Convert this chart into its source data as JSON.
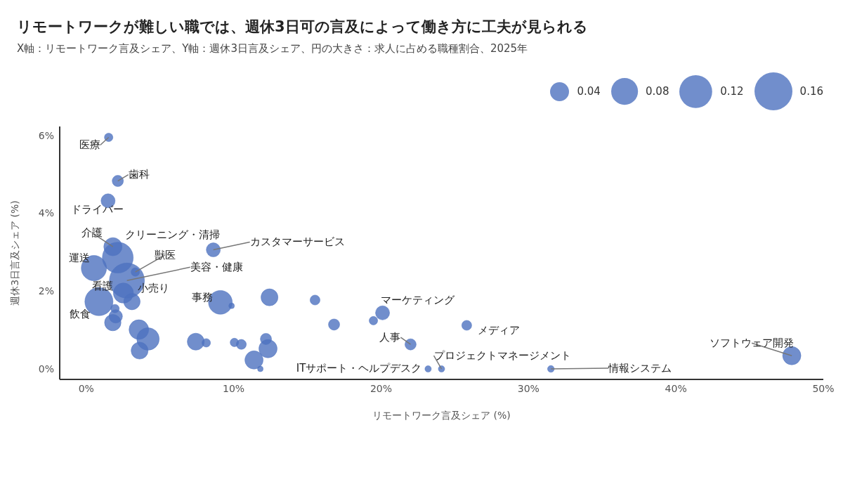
{
  "chart_data": {
    "type": "bubble",
    "title": "リモートワークが難しい職では、週休3日可の言及によって働き方に工夫が見られる",
    "subtitle": "X軸：リモートワーク言及シェア、Y軸：週休3日言及シェア、円の大きさ：求人に占める職種割合、2025年",
    "xlabel": "リモートワーク言及シェア (%)",
    "ylabel": "週休3日言及シェア (%)",
    "xlim": [
      -1.8,
      50
    ],
    "ylim": [
      -0.27,
      6.23
    ],
    "xticks": [
      {
        "value": 0,
        "label": "0%"
      },
      {
        "value": 10,
        "label": "10%"
      },
      {
        "value": 20,
        "label": "20%"
      },
      {
        "value": 30,
        "label": "30%"
      },
      {
        "value": 40,
        "label": "40%"
      },
      {
        "value": 50,
        "label": "50%"
      }
    ],
    "yticks": [
      {
        "value": 0,
        "label": "0%"
      },
      {
        "value": 2,
        "label": "2%"
      },
      {
        "value": 4,
        "label": "4%"
      },
      {
        "value": 6,
        "label": "6%"
      }
    ],
    "size_legend": [
      0.04,
      0.08,
      0.12,
      0.16
    ],
    "series": [
      {
        "color": "#4e72bf",
        "x": [
          1.52,
          2.14,
          1.48,
          1.81,
          2.14,
          0.52,
          3.33,
          2.76,
          0.86,
          3.1,
          1.8,
          8.62,
          9.1,
          20.1,
          25.81,
          22.0,
          23.19,
          24.1,
          31.52,
          47.86,
          9.86,
          12.43,
          15.52,
          16.81,
          19.48,
          7.43,
          8.14,
          10.05,
          10.52,
          12.19,
          12.33,
          11.38,
          11.81,
          3.57,
          4.19,
          3.62,
          2.52,
          1.95,
          2.0
        ],
        "values": [
          5.95,
          4.83,
          4.32,
          3.14,
          2.86,
          2.59,
          2.49,
          2.27,
          1.73,
          1.73,
          1.19,
          3.06,
          1.71,
          1.44,
          1.12,
          0.63,
          0,
          0,
          0,
          0.34,
          1.62,
          1.84,
          1.77,
          1.14,
          1.24,
          0.7,
          0.67,
          0.68,
          0.63,
          0.77,
          0.52,
          0.23,
          0,
          1.01,
          0.77,
          0.47,
          1.95,
          1.55,
          1.35
        ],
        "sizes": [
          0.008,
          0.014,
          0.022,
          0.037,
          0.106,
          0.071,
          0.008,
          0.137,
          0.088,
          0.03,
          0.03,
          0.022,
          0.063,
          0.022,
          0.011,
          0.014,
          0.0045,
          0.0045,
          0.005,
          0.037,
          0.0035,
          0.032,
          0.011,
          0.014,
          0.008,
          0.032,
          0.008,
          0.008,
          0.011,
          0.014,
          0.037,
          0.037,
          0.0035,
          0.043,
          0.056,
          0.032,
          0.045,
          0.008,
          0.02
        ]
      }
    ],
    "annotations": [
      {
        "text": "医療",
        "x": 1.52,
        "y": 5.95
      },
      {
        "text": "歯科",
        "x": 2.14,
        "y": 4.83
      },
      {
        "text": "ドライバー",
        "x": 1.48,
        "y": 4.32
      },
      {
        "text": "介護",
        "x": 1.81,
        "y": 3.14
      },
      {
        "text": "クリーニング・清掃",
        "x": 2.14,
        "y": 2.86
      },
      {
        "text": "運送",
        "x": 0.52,
        "y": 2.59
      },
      {
        "text": "獣医",
        "x": 3.33,
        "y": 2.49
      },
      {
        "text": "美容・健康",
        "x": 2.76,
        "y": 2.27
      },
      {
        "text": "看護",
        "x": 0.86,
        "y": 1.73
      },
      {
        "text": "小売り",
        "x": 3.1,
        "y": 1.73
      },
      {
        "text": "飲食",
        "x": 1.8,
        "y": 1.19
      },
      {
        "text": "カスタマーサービス",
        "x": 8.62,
        "y": 3.06
      },
      {
        "text": "事務",
        "x": 9.1,
        "y": 1.71
      },
      {
        "text": "マーケティング",
        "x": 20.1,
        "y": 1.44
      },
      {
        "text": "メディア",
        "x": 25.81,
        "y": 1.12
      },
      {
        "text": "人事",
        "x": 22.0,
        "y": 0.63
      },
      {
        "text": "ITサポート・ヘルプデスク",
        "x": 23.19,
        "y": 0
      },
      {
        "text": "プロジェクトマネージメント",
        "x": 24.1,
        "y": 0
      },
      {
        "text": "情報システム",
        "x": 31.52,
        "y": 0
      },
      {
        "text": "ソフトウェア開発",
        "x": 47.86,
        "y": 0.34
      }
    ]
  }
}
